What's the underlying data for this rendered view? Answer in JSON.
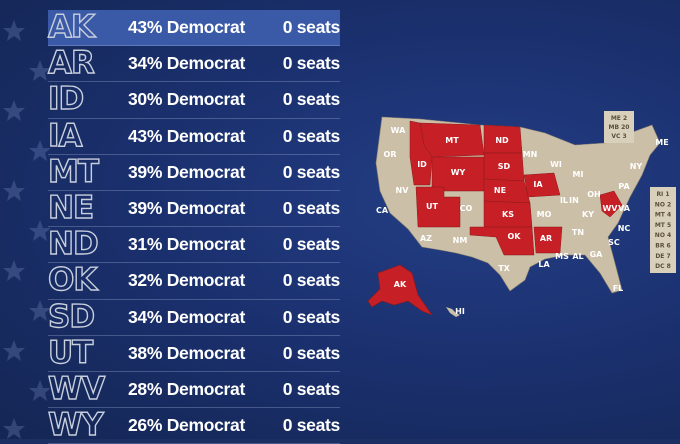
{
  "rows": [
    {
      "state": "AK",
      "pct": "43% Democrat",
      "seats": "0 seats",
      "highlight": true
    },
    {
      "state": "AR",
      "pct": "34% Democrat",
      "seats": "0 seats"
    },
    {
      "state": "ID",
      "pct": "30% Democrat",
      "seats": "0 seats"
    },
    {
      "state": "IA",
      "pct": "43% Democrat",
      "seats": "0 seats"
    },
    {
      "state": "MT",
      "pct": "39% Democrat",
      "seats": "0 seats"
    },
    {
      "state": "NE",
      "pct": "39% Democrat",
      "seats": "0 seats"
    },
    {
      "state": "ND",
      "pct": "31% Democrat",
      "seats": "0 seats"
    },
    {
      "state": "OK",
      "pct": "32% Democrat",
      "seats": "0 seats"
    },
    {
      "state": "SD",
      "pct": "34% Democrat",
      "seats": "0 seats"
    },
    {
      "state": "UT",
      "pct": "38% Democrat",
      "seats": "0 seats"
    },
    {
      "state": "WV",
      "pct": "28% Democrat",
      "seats": "0 seats"
    },
    {
      "state": "WY",
      "pct": "26% Democrat",
      "seats": "0 seats"
    }
  ],
  "map_labels": {
    "wa": "WA",
    "or": "OR",
    "id": "ID",
    "mt": "MT",
    "wy": "WY",
    "nv": "NV",
    "ut": "UT",
    "ca": "CA",
    "az": "AZ",
    "co": "CO",
    "nm": "NM",
    "nd": "ND",
    "sd": "SD",
    "ne": "NE",
    "ks": "KS",
    "ok": "OK",
    "tx": "TX",
    "mn": "MN",
    "ia": "IA",
    "mo": "MO",
    "ar": "AR",
    "la": "LA",
    "wi": "WI",
    "il": "IL",
    "mi": "MI",
    "in": "IN",
    "oh": "OH",
    "ky": "KY",
    "tn": "TN",
    "ms": "MS",
    "al": "AL",
    "ga": "GA",
    "fl": "FL",
    "sc": "SC",
    "nc": "NC",
    "va": "VA",
    "wv": "WV",
    "pa": "PA",
    "ny": "NY",
    "me": "ME",
    "ak": "AK",
    "hi": "HI"
  },
  "ne_box": [
    "ME 2",
    "MB 20",
    "VC 3"
  ],
  "east_box": [
    "RI 1",
    "NO 2",
    "MT 4",
    "MT 5",
    "NO 4",
    "BR 6",
    "DE 7",
    "DC 8"
  ],
  "colors": {
    "red": "#c62026",
    "tan": "#cbbfa8",
    "highlight": "#3a5aa8",
    "background": "#1b2f63"
  }
}
